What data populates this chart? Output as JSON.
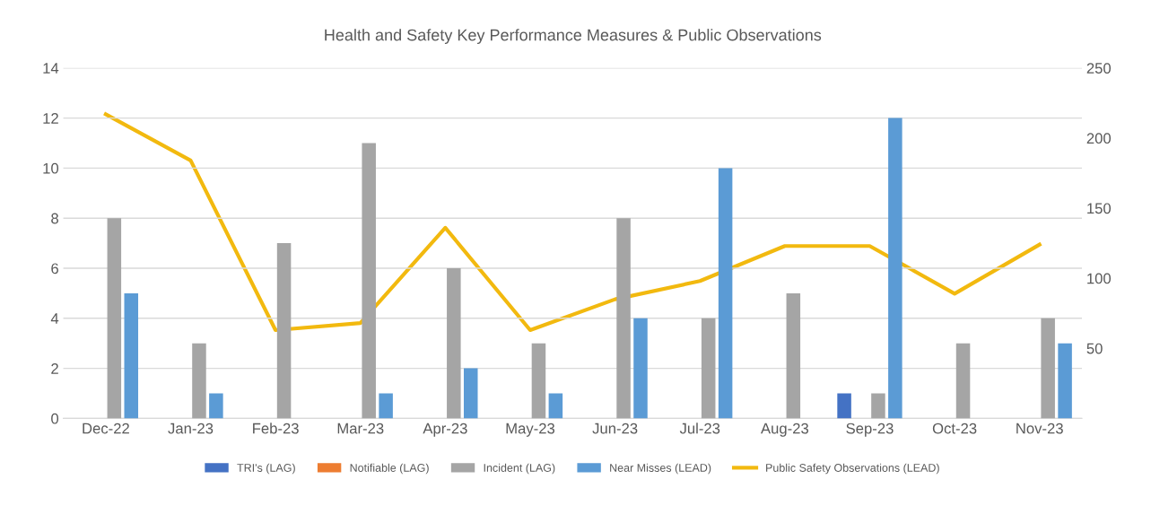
{
  "chart_data": {
    "type": "bar",
    "title": "Health and Safety Key Performance Measures & Public Observations",
    "categories": [
      "Dec-22",
      "Jan-23",
      "Feb-23",
      "Mar-23",
      "Apr-23",
      "May-23",
      "Jun-23",
      "Jul-23",
      "Aug-23",
      "Sep-23",
      "Oct-23",
      "Nov-23"
    ],
    "series": [
      {
        "name": "TRI's (LAG)",
        "color": "#4472c4",
        "values": [
          0,
          0,
          0,
          0,
          0,
          0,
          0,
          0,
          0,
          1,
          0,
          0
        ]
      },
      {
        "name": "Notifiable (LAG)",
        "color": "#ed7d31",
        "values": [
          0,
          0,
          0,
          0,
          0,
          0,
          0,
          0,
          0,
          0,
          0,
          0
        ]
      },
      {
        "name": "Incident (LAG)",
        "color": "#a5a5a5",
        "values": [
          8,
          3,
          7,
          11,
          6,
          3,
          8,
          4,
          5,
          1,
          3,
          4
        ]
      },
      {
        "name": "Near Misses (LEAD)",
        "color": "#5b9bd5",
        "values": [
          5,
          1,
          0,
          1,
          2,
          1,
          4,
          10,
          0,
          12,
          0,
          3
        ]
      },
      {
        "name": "Public Safety Observations (LEAD)",
        "color": "#f2b90f",
        "type": "line",
        "axis": "y2",
        "values": [
          217,
          184,
          63,
          68,
          136,
          63,
          85,
          98,
          123,
          123,
          89,
          124
        ]
      }
    ],
    "ylim": [
      0,
      14
    ],
    "yticks": [
      0,
      2,
      4,
      6,
      8,
      10,
      12,
      14
    ],
    "y2lim": [
      0,
      250
    ],
    "y2ticks": [
      50,
      100,
      150,
      200,
      250
    ],
    "grid": "y",
    "legend": "bottom",
    "marker": "none",
    "line_style": "solid"
  }
}
